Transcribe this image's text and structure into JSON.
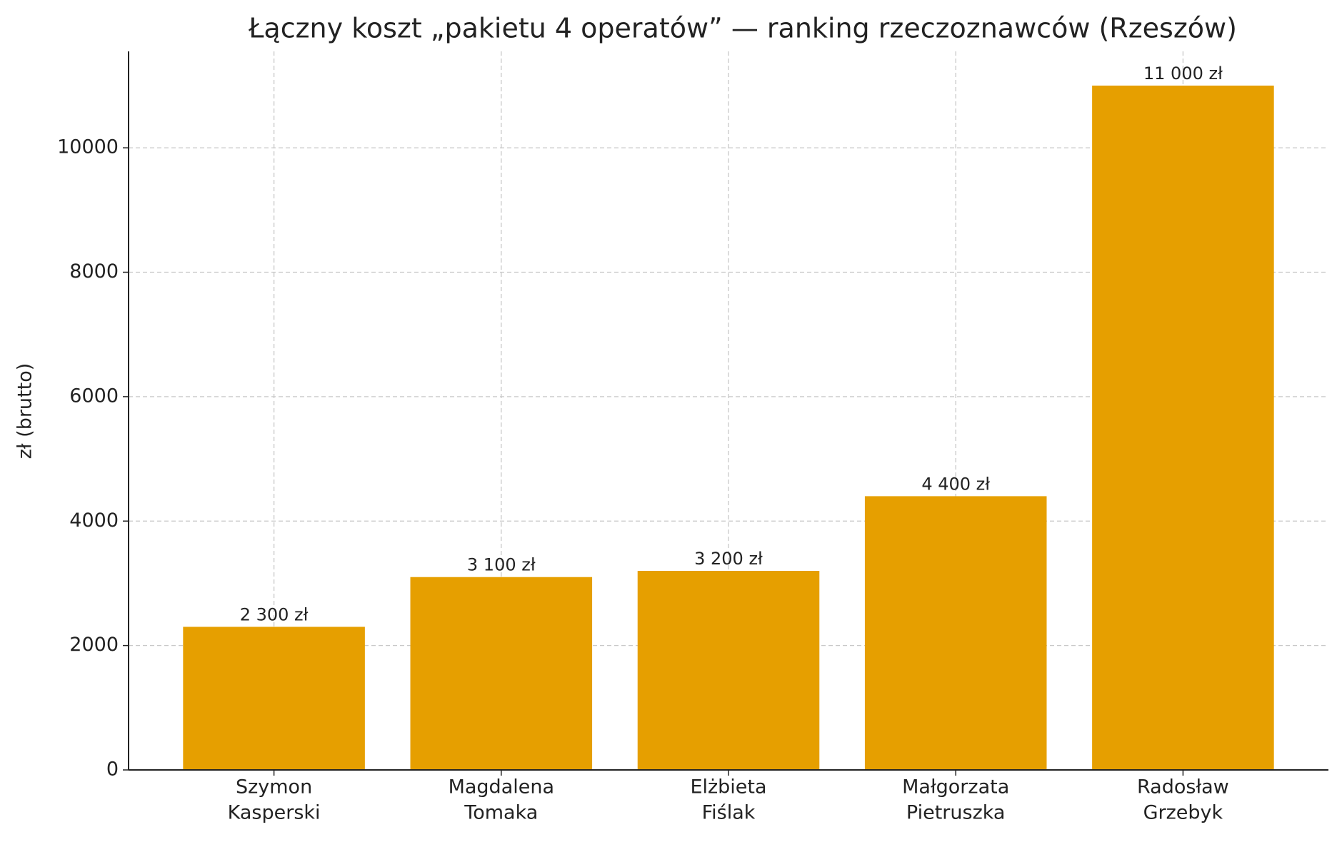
{
  "chart_data": {
    "type": "bar",
    "title": "Łączny koszt „pakietu 4 operatów” — ranking rzeczoznawców (Rzeszów)",
    "y_label": "zł (brutto)",
    "categories": [
      [
        "Szymon",
        "Kasperski"
      ],
      [
        "Magdalena",
        "Tomaka"
      ],
      [
        "Elżbieta",
        "Fiślak"
      ],
      [
        "Małgorzata",
        "Pietruszka"
      ],
      [
        "Radosław",
        "Grzebyk"
      ]
    ],
    "values": [
      2300,
      3100,
      3200,
      4400,
      11000
    ],
    "value_labels": [
      "2 300 zł",
      "3 100 zł",
      "3 200 zł",
      "4 400 zł",
      "11 000 zł"
    ],
    "color": "#e69f00",
    "ylim": [
      0,
      11550
    ],
    "yticks": [
      0,
      2000,
      4000,
      6000,
      8000,
      10000
    ],
    "grid": true
  }
}
